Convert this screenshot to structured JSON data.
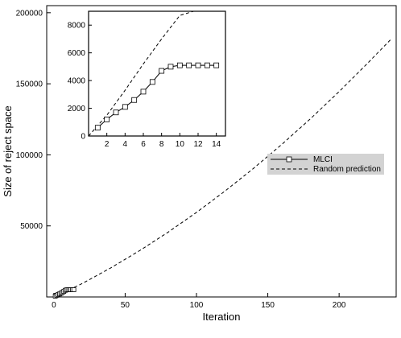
{
  "chart_data": [
    {
      "id": "main",
      "type": "line",
      "xlabel": "Iteration",
      "ylabel": "Size of reject space",
      "xlim": [
        -5,
        240
      ],
      "ylim": [
        0,
        205000
      ],
      "xticks": [
        0,
        50,
        100,
        150,
        200
      ],
      "yticks": [
        50000,
        100000,
        150000,
        200000
      ],
      "grid": false,
      "legend": {
        "position": "right",
        "entries": [
          "MLCI",
          "Random prediction"
        ]
      },
      "series": [
        {
          "name": "MLCI",
          "style": "solid-square-markers",
          "x": [
            1,
            2,
            3,
            4,
            5,
            6,
            7,
            8,
            9,
            10,
            11,
            12,
            13,
            14
          ],
          "y": [
            600,
            1200,
            1700,
            2100,
            2600,
            3200,
            3900,
            4700,
            5000,
            5100,
            5100,
            5100,
            5100,
            5100
          ]
        },
        {
          "name": "Random prediction",
          "style": "dashed",
          "x": [
            0,
            20,
            40,
            60,
            80,
            100,
            120,
            140,
            160,
            180,
            200,
            220,
            237
          ],
          "y": [
            0,
            9500,
            20500,
            32500,
            45500,
            59500,
            74500,
            90500,
            107500,
            125500,
            144500,
            164500,
            182000
          ]
        }
      ]
    },
    {
      "id": "inset",
      "type": "line",
      "xlim": [
        0,
        15
      ],
      "ylim": [
        0,
        9000
      ],
      "xticks": [
        2,
        4,
        6,
        8,
        10,
        12,
        14
      ],
      "yticks": [
        0,
        2000,
        4000,
        6000,
        8000
      ],
      "grid": false,
      "series": [
        {
          "name": "MLCI",
          "style": "solid-square-markers",
          "x": [
            1,
            2,
            3,
            4,
            5,
            6,
            7,
            8,
            9,
            10,
            11,
            12,
            13,
            14
          ],
          "y": [
            600,
            1200,
            1700,
            2100,
            2600,
            3200,
            3900,
            4700,
            5000,
            5100,
            5100,
            5100,
            5100,
            5100
          ]
        },
        {
          "name": "Random prediction",
          "style": "dashed",
          "x": [
            0,
            2,
            4,
            6,
            8,
            10,
            11.5
          ],
          "y": [
            0,
            1500,
            3300,
            5200,
            7000,
            8700,
            9000
          ]
        }
      ]
    }
  ],
  "colors": {
    "axis": "#000000",
    "legend_bg": "#d3d3d3",
    "marker_fill": "#ffffff"
  }
}
